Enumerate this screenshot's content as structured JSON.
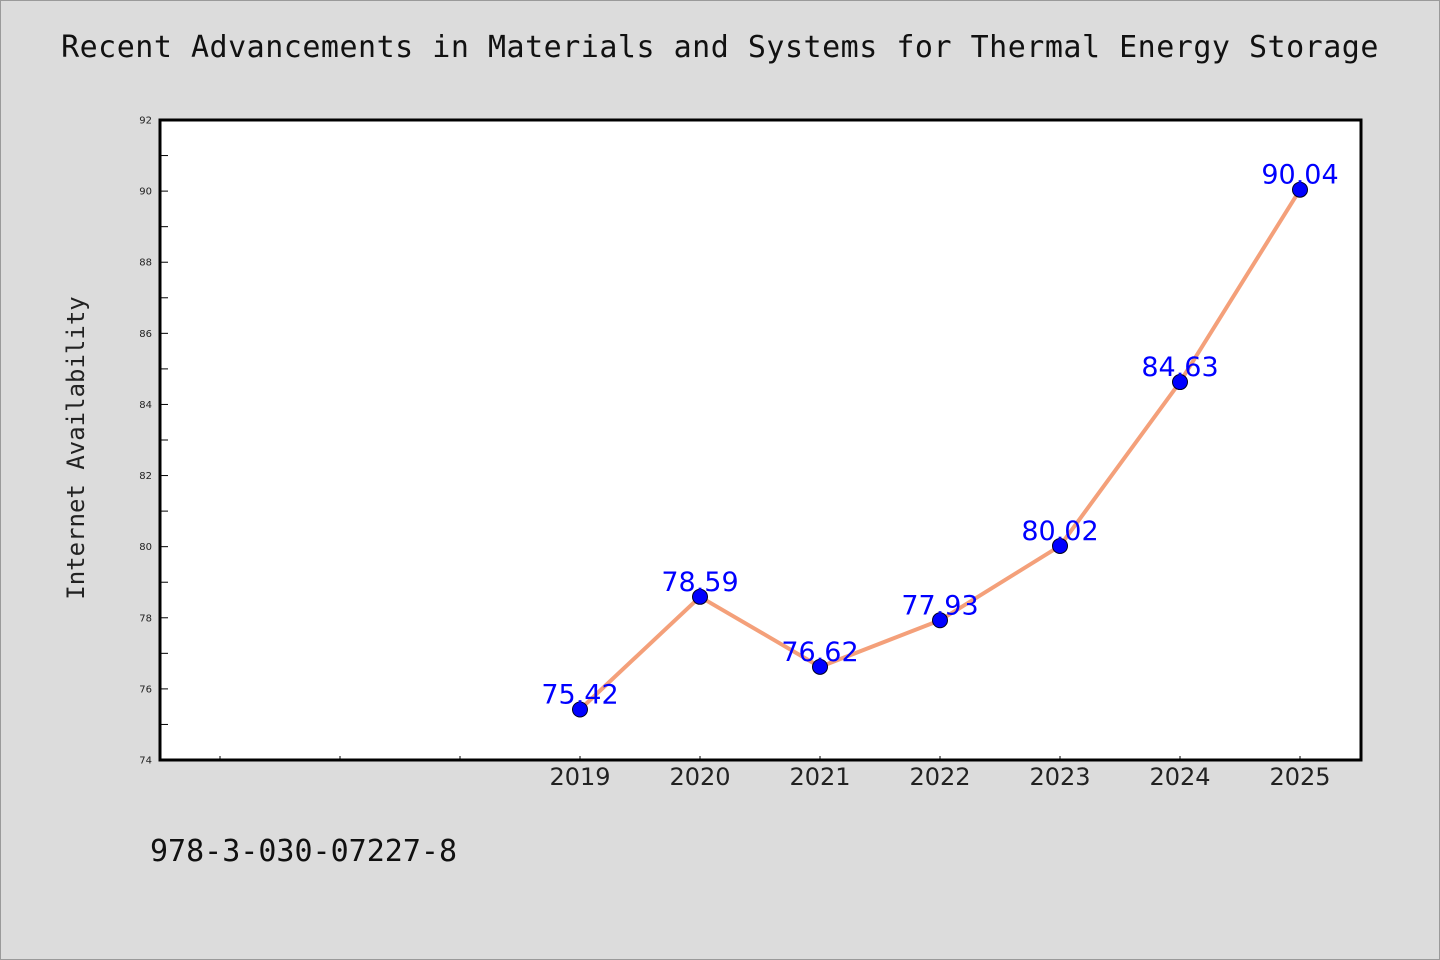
{
  "chart_data": {
    "type": "line",
    "title": "Recent Advancements in Materials and Systems for Thermal Energy Storage",
    "xlabel": "",
    "ylabel": "Internet Availability",
    "categories": [
      "2019",
      "2020",
      "2021",
      "2022",
      "2023",
      "2024",
      "2025"
    ],
    "series": [
      {
        "values": [
          75.42,
          78.59,
          76.62,
          77.93,
          80.02,
          84.63,
          90.04
        ],
        "data_labels": [
          "75.42",
          "78.59",
          "76.62",
          "77.93",
          "80.02",
          "84.63",
          "90.04"
        ]
      }
    ],
    "ylim": [
      74,
      92
    ],
    "yticks": [
      "74",
      "76",
      "78",
      "80",
      "82",
      "84",
      "86",
      "88",
      "90",
      "92"
    ],
    "grid": false,
    "legend": "none",
    "colors": {
      "line": "#f4a07a",
      "marker": "#0000ff",
      "data_label": "#0000ff",
      "background": "#dcdcdc",
      "plot_background": "#ffffff"
    }
  },
  "footer": {
    "isbn": "978-3-030-07227-8"
  }
}
